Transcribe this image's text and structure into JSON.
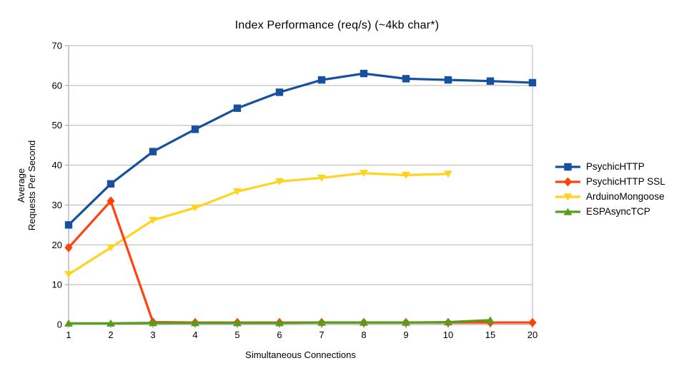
{
  "chart_data": {
    "type": "line",
    "title": "Index Performance (req/s) (~4kb char*)",
    "xlabel": "Simultaneous Connections",
    "ylabel_lines": [
      "Average",
      "Requests Per Second"
    ],
    "categories": [
      "1",
      "2",
      "3",
      "4",
      "5",
      "6",
      "7",
      "8",
      "9",
      "10",
      "15",
      "20"
    ],
    "ylim": [
      0,
      70
    ],
    "ytick_step": 10,
    "ytick_labels": [
      "0",
      "10",
      "20",
      "30",
      "40",
      "50",
      "60",
      "70"
    ],
    "grid": "horizontal-on",
    "legend_position": "right",
    "series": [
      {
        "name": "PsychicHTTP",
        "color": "#17519e",
        "marker": "square",
        "values": [
          25.0,
          35.3,
          43.4,
          49.0,
          54.3,
          58.3,
          61.4,
          63.0,
          61.7,
          61.4,
          61.1,
          60.7
        ]
      },
      {
        "name": "PsychicHTTP SSL",
        "color": "#ff420e",
        "marker": "diamond",
        "values": [
          19.3,
          31.0,
          0.6,
          0.5,
          0.5,
          0.5,
          0.5,
          0.5,
          0.5,
          0.5,
          0.5,
          0.5
        ]
      },
      {
        "name": "ArduinoMongoose",
        "color": "#ffd320",
        "marker": "triangle-down",
        "values": [
          12.6,
          19.3,
          26.2,
          29.3,
          33.4,
          35.9,
          36.8,
          38.0,
          37.5,
          37.8,
          null,
          null
        ]
      },
      {
        "name": "ESPAsyncTCP",
        "color": "#579d1c",
        "marker": "triangle-up",
        "values": [
          0.3,
          0.3,
          0.4,
          0.4,
          0.4,
          0.4,
          0.5,
          0.5,
          0.5,
          0.6,
          1.1,
          null
        ]
      }
    ]
  }
}
